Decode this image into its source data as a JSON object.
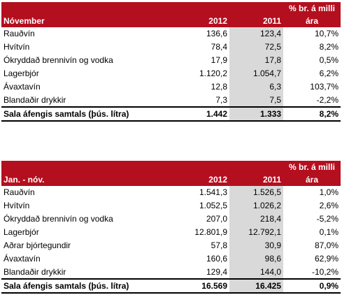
{
  "tables": [
    {
      "title": "Nóvember",
      "col_2012": "2012",
      "col_2011": "2011",
      "col_pct_line1": "% br. á milli",
      "col_pct_line2": "ára",
      "rows": [
        {
          "label": "Rauðvín",
          "v2012": "136,6",
          "v2011": "123,4",
          "pct": "10,7%"
        },
        {
          "label": "Hvítvín",
          "v2012": "78,4",
          "v2011": "72,5",
          "pct": "8,2%"
        },
        {
          "label": "Ókryddað brennivín og vodka",
          "v2012": "17,9",
          "v2011": "17,8",
          "pct": "0,5%"
        },
        {
          "label": "Lagerbjór",
          "v2012": "1.120,2",
          "v2011": "1.054,7",
          "pct": "6,2%"
        },
        {
          "label": "Ávaxtavín",
          "v2012": "12,8",
          "v2011": "6,3",
          "pct": "103,7%"
        },
        {
          "label": "Blandaðir drykkir",
          "v2012": "7,3",
          "v2011": "7,5",
          "pct": "-2,2%"
        }
      ],
      "total": {
        "label": "Sala áfengis samtals (þús. lítra)",
        "v2012": "1.442",
        "v2011": "1.333",
        "pct": "8,2%"
      }
    },
    {
      "title": "Jan. - nóv.",
      "col_2012": "2012",
      "col_2011": "2011",
      "col_pct_line1": "% br. á milli",
      "col_pct_line2": "ára",
      "rows": [
        {
          "label": "Rauðvín",
          "v2012": "1.541,3",
          "v2011": "1.526,5",
          "pct": "1,0%"
        },
        {
          "label": "Hvítvín",
          "v2012": "1.052,5",
          "v2011": "1.026,2",
          "pct": "2,6%"
        },
        {
          "label": "Ókryddað brennivín og vodka",
          "v2012": "207,0",
          "v2011": "218,4",
          "pct": "-5,2%"
        },
        {
          "label": "Lagerbjór",
          "v2012": "12.801,9",
          "v2011": "12.792,1",
          "pct": "0,1%"
        },
        {
          "label": "Aðrar bjórtegundir",
          "v2012": "57,8",
          "v2011": "30,9",
          "pct": "87,0%"
        },
        {
          "label": "Ávaxtavín",
          "v2012": "160,6",
          "v2011": "98,6",
          "pct": "62,9%"
        },
        {
          "label": "Blandaðir drykkir",
          "v2012": "129,4",
          "v2011": "144,0",
          "pct": "-10,2%"
        }
      ],
      "total": {
        "label": "Sala áfengis samtals (þús. lítra)",
        "v2012": "16.569",
        "v2011": "16.425",
        "pct": "0,9%"
      }
    }
  ]
}
